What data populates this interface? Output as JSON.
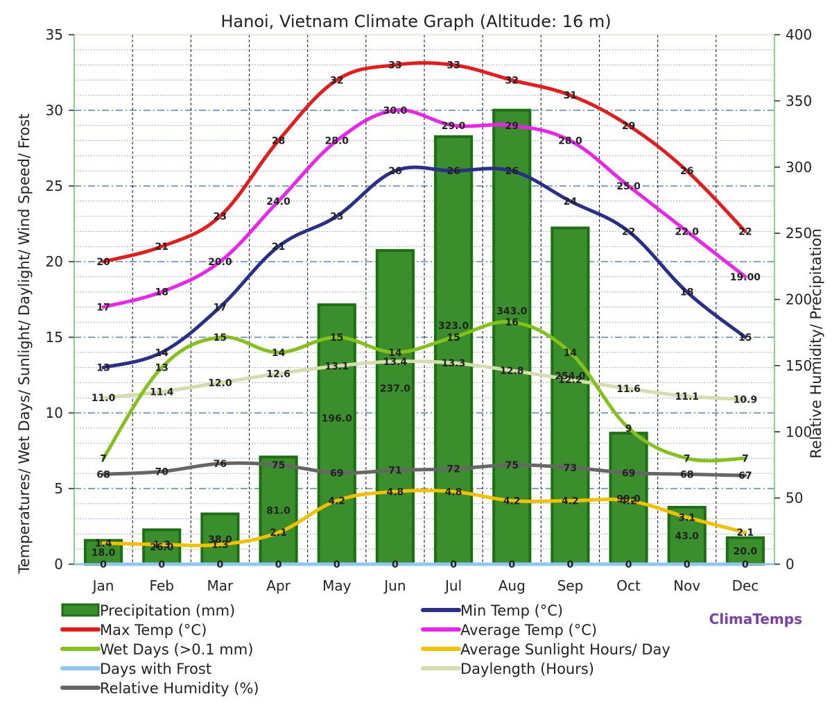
{
  "chart_data": {
    "type": "bar+line",
    "title": "Hanoi, Vietnam Climate Graph (Altitude: 16 m)",
    "ylabel_left": "Temperatures/ Wet Days/ Sunlight/ Daylight/ Wind Speed/ Frost",
    "ylabel_right": "Relative Humidity/ Precipitation",
    "categories": [
      "Jan",
      "Feb",
      "Mar",
      "Apr",
      "May",
      "Jun",
      "Jul",
      "Aug",
      "Sep",
      "Oct",
      "Nov",
      "Dec"
    ],
    "ylim_left": [
      0,
      35
    ],
    "yticks_left": [
      "0",
      "5",
      "10",
      "15",
      "20",
      "25",
      "30",
      "35"
    ],
    "ylim_right": [
      0,
      400
    ],
    "yticks_right": [
      "0",
      "50",
      "100",
      "150",
      "200",
      "250",
      "300",
      "350",
      "400"
    ],
    "bars": {
      "name": "Precipitation (mm)",
      "axis": "right",
      "color": "#3a8f2c",
      "values": [
        18,
        26,
        38,
        81,
        196,
        237,
        323,
        343,
        254,
        99,
        43,
        20
      ],
      "labels": [
        "18.0",
        "26.0",
        "38.0",
        "81.0",
        "196.0",
        "237.0",
        "323.0",
        "343.0",
        "254.0",
        "99.0",
        "43.0",
        "20.0"
      ]
    },
    "series": [
      {
        "name": "Relative Humidity (%)",
        "axis": "right",
        "color": "#666666",
        "values": [
          68,
          70,
          76,
          75,
          69,
          71,
          72,
          75,
          73,
          69,
          68,
          67
        ],
        "labels": [
          "68",
          "70",
          "76",
          "75",
          "69",
          "71",
          "72",
          "75",
          "73",
          "69",
          "68",
          "67"
        ]
      },
      {
        "name": "Daylength (Hours)",
        "axis": "left",
        "color": "#d6dcae",
        "values": [
          11.0,
          11.4,
          12.0,
          12.6,
          13.1,
          13.4,
          13.3,
          12.8,
          12.2,
          11.6,
          11.1,
          10.9
        ],
        "labels": [
          "11.0",
          "11.4",
          "12.0",
          "12.6",
          "13.1",
          "13.4",
          "13.3",
          "12.8",
          "12.2",
          "11.6",
          "11.1",
          "10.9"
        ]
      },
      {
        "name": "Wet Days (>0.1 mm)",
        "axis": "left",
        "color": "#84c21a",
        "values": [
          7,
          13,
          15,
          14,
          15,
          14,
          15,
          16,
          14,
          9,
          7,
          7
        ],
        "labels": [
          "7",
          "13",
          "15",
          "14",
          "15",
          "14",
          "15",
          "16",
          "14",
          "9",
          "7",
          "7"
        ]
      },
      {
        "name": "Average Sunlight Hours/ Day",
        "axis": "left",
        "color": "#f5c000",
        "values": [
          1.4,
          1.3,
          1.3,
          2.1,
          4.2,
          4.8,
          4.8,
          4.2,
          4.2,
          4.2,
          3.1,
          2.1
        ],
        "labels": [
          "1.4",
          "1.3",
          "1.3",
          "2.1",
          "4.2",
          "4.8",
          "4.8",
          "4.2",
          "4.2",
          "4.2",
          "3.1",
          "2.1"
        ]
      },
      {
        "name": "Days with Frost",
        "axis": "left",
        "color": "#8ec8ee",
        "values": [
          0,
          0,
          0,
          0,
          0,
          0,
          0,
          0,
          0,
          0,
          0,
          0
        ],
        "labels": [
          "0",
          "0",
          "0",
          "0",
          "0",
          "0",
          "0",
          "0",
          "0",
          "0",
          "0",
          "0"
        ]
      },
      {
        "name": "Min Temp (°C)",
        "axis": "left",
        "color": "#2a2f8c",
        "values": [
          13,
          14,
          17,
          21,
          23,
          26,
          26,
          26,
          24,
          22,
          18,
          15
        ],
        "labels": [
          "13",
          "14",
          "17",
          "21",
          "23",
          "26",
          "26",
          "26",
          "24",
          "22",
          "18",
          "15"
        ]
      },
      {
        "name": "Average Temp (°C)",
        "axis": "left",
        "color": "#ee22ee",
        "values": [
          17,
          18,
          20,
          24,
          28,
          30,
          29,
          29,
          28,
          25,
          22,
          19
        ],
        "labels": [
          "17",
          "18",
          "20.0",
          "24.0",
          "28.0",
          "30.0",
          "29.0",
          "29",
          "28.0",
          "25.0",
          "22.0",
          "19.00"
        ]
      },
      {
        "name": "Max Temp (°C)",
        "axis": "left",
        "color": "#e81a1a",
        "values": [
          20,
          21,
          23,
          28,
          32,
          33,
          33,
          32,
          31,
          29,
          26,
          22
        ],
        "labels": [
          "20",
          "21",
          "23",
          "28",
          "32",
          "33",
          "33",
          "32",
          "31",
          "29",
          "26",
          "22"
        ]
      }
    ],
    "legend": [
      {
        "name": "Precipitation (mm)",
        "color": "#3a8f2c",
        "kind": "bar"
      },
      {
        "name": "Min Temp (°C)",
        "color": "#2a2f8c",
        "kind": "line"
      },
      {
        "name": "Max Temp (°C)",
        "color": "#e81a1a",
        "kind": "line"
      },
      {
        "name": "Average Temp (°C)",
        "color": "#ee22ee",
        "kind": "line"
      },
      {
        "name": "Wet Days (>0.1 mm)",
        "color": "#84c21a",
        "kind": "line"
      },
      {
        "name": "Average Sunlight Hours/ Day",
        "color": "#f5c000",
        "kind": "line"
      },
      {
        "name": "Days with Frost",
        "color": "#8ec8ee",
        "kind": "line"
      },
      {
        "name": "Daylength (Hours)",
        "color": "#d6dcae",
        "kind": "line"
      },
      {
        "name": "Relative Humidity (%)",
        "color": "#666666",
        "kind": "line"
      }
    ],
    "legend_position": "bottom",
    "grid": true
  },
  "brand": "ClimaTemps"
}
